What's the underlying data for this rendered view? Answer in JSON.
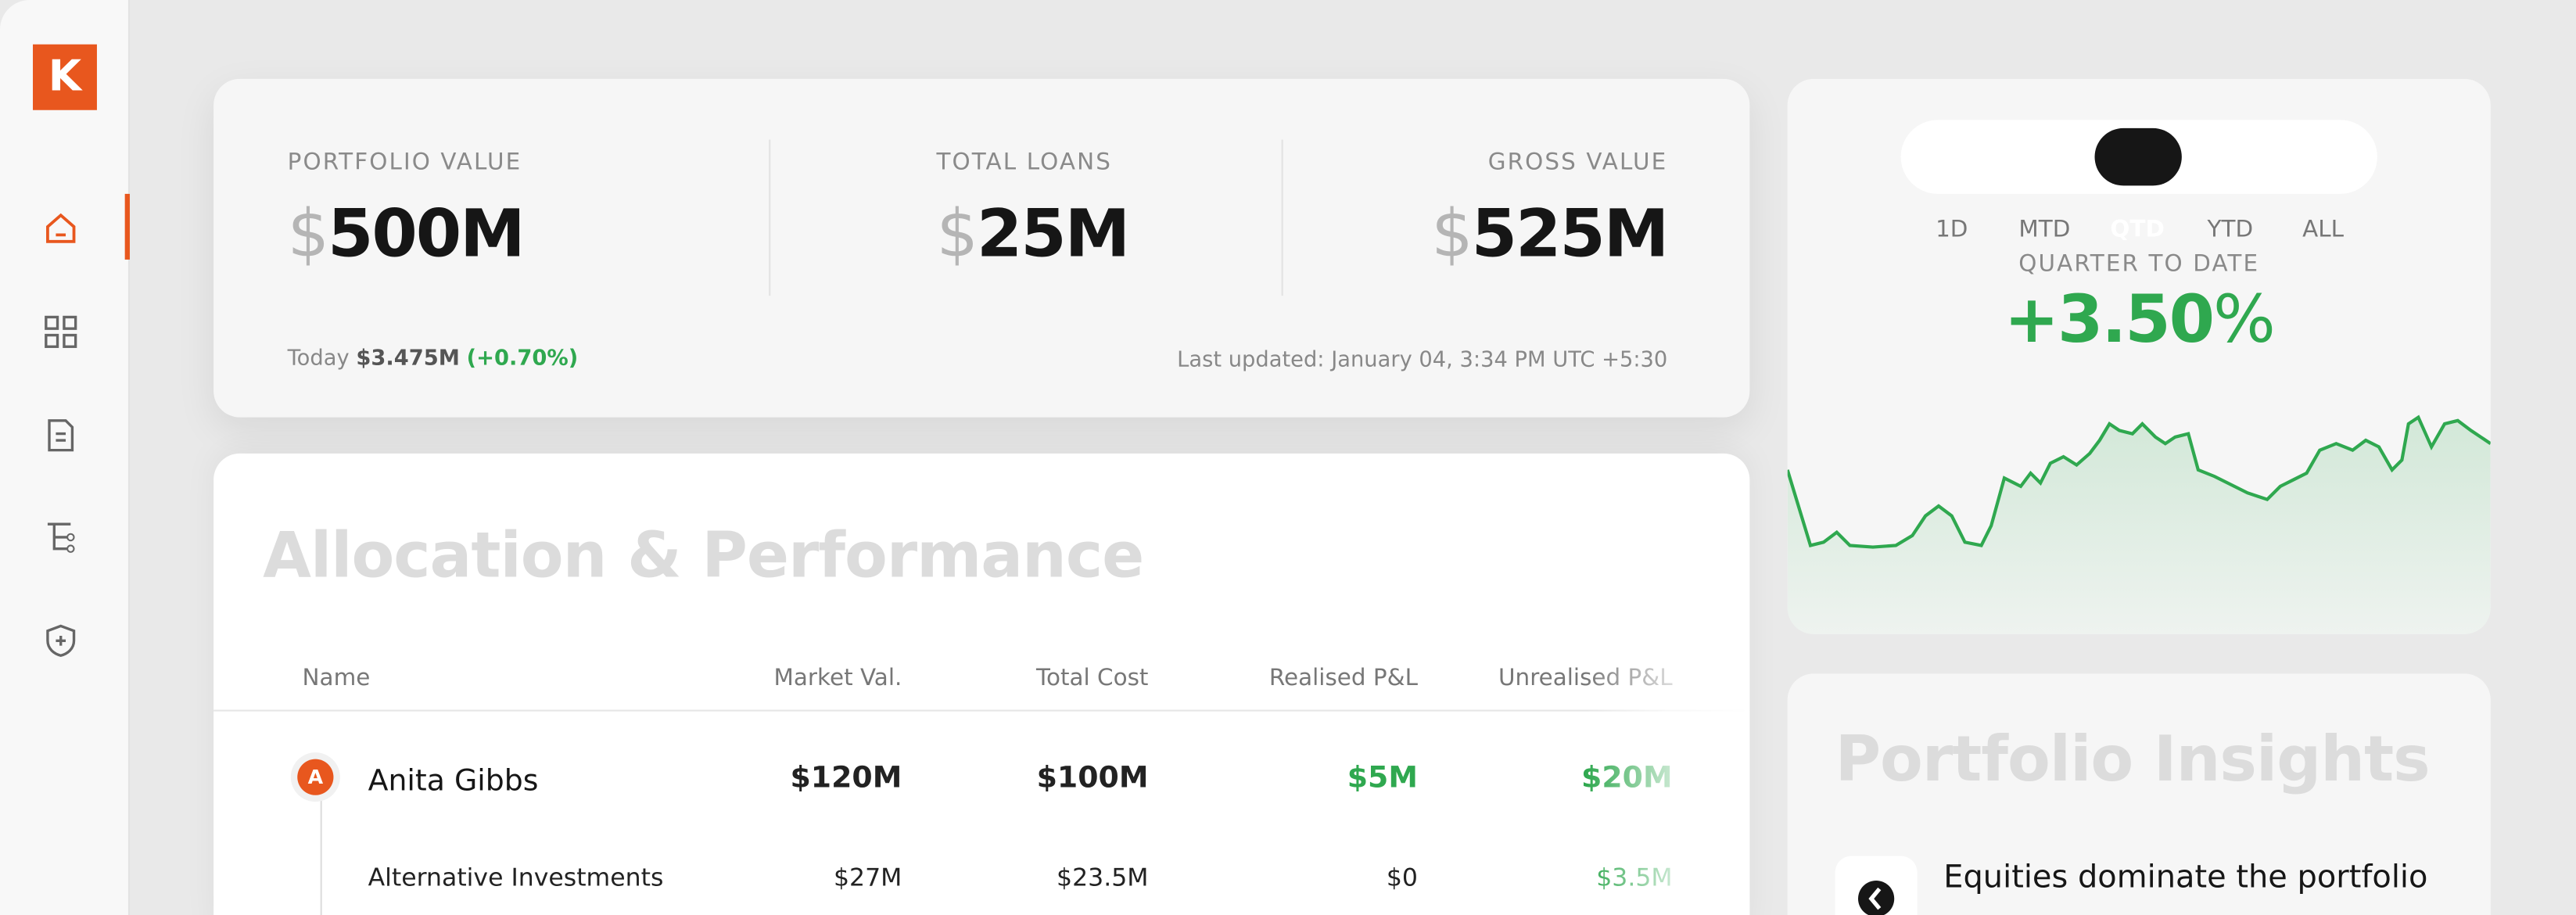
{
  "sidebar": {
    "logo": "K"
  },
  "stats": {
    "items": [
      {
        "label": "PORTFOLIO VALUE",
        "currency": "$",
        "value": "500M"
      },
      {
        "label": "TOTAL LOANS",
        "currency": "$",
        "value": "25M"
      },
      {
        "label": "GROSS VALUE",
        "currency": "$",
        "value": "525M"
      }
    ],
    "today_label": "Today",
    "today_value": "$3.475M",
    "today_change": "(+0.70%)",
    "updated_label": "Last updated:",
    "updated_value": "January 04, 3:34 PM UTC +5:30"
  },
  "performance": {
    "tabs": [
      "1D",
      "MTD",
      "QTD",
      "YTD",
      "ALL"
    ],
    "active_tab": "QTD",
    "period_label": "QUARTER TO DATE",
    "change": "+3.50",
    "change_unit": "%"
  },
  "allocation": {
    "title": "Allocation & Performance",
    "columns": [
      "Name",
      "Market Val.",
      "Total Cost",
      "Realised P&L",
      "Unrealised P&L"
    ],
    "rows": [
      {
        "avatar": "A",
        "cells": [
          "Anita Gibbs",
          "$120M",
          "$100M",
          "$5M",
          "$20M"
        ]
      },
      {
        "cells": [
          "Alternative Investments",
          "$27M",
          "$23.5M",
          "$0",
          "$3.5M"
        ]
      }
    ]
  },
  "insights": {
    "title": "Portfolio Insights",
    "items": [
      "Equities dominate the portfolio"
    ]
  }
}
